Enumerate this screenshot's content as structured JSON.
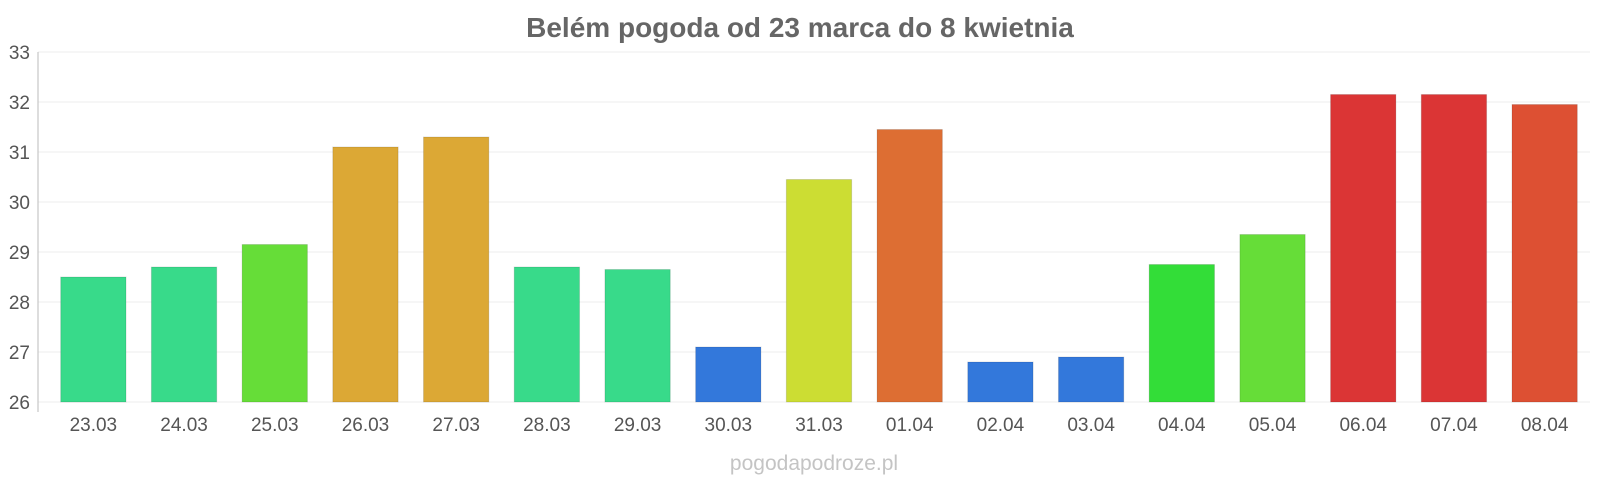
{
  "chart_data": {
    "type": "bar",
    "title": "Belém pogoda od 23 marca do 8 kwietnia",
    "xlabel": "",
    "ylabel": "",
    "ylim": [
      26,
      33
    ],
    "yticks": [
      "26",
      "27",
      "28",
      "29",
      "30",
      "31",
      "32",
      "33"
    ],
    "grid": true,
    "legend": "none",
    "categories": [
      "23.03",
      "24.03",
      "25.03",
      "26.03",
      "27.03",
      "28.03",
      "29.03",
      "30.03",
      "31.03",
      "01.04",
      "02.04",
      "03.04",
      "04.04",
      "05.04",
      "06.04",
      "07.04",
      "08.04"
    ],
    "values": [
      28.5,
      28.7,
      29.15,
      31.1,
      31.3,
      28.7,
      28.65,
      27.1,
      30.45,
      31.45,
      26.8,
      26.9,
      28.75,
      29.35,
      32.15,
      32.15,
      31.95
    ],
    "colors": [
      "#38da8a",
      "#38da8a",
      "#66dd38",
      "#dca835",
      "#dca835",
      "#38da8a",
      "#38da8a",
      "#3378db",
      "#ccdd33",
      "#dd6e33",
      "#3378db",
      "#3378db",
      "#33dd38",
      "#66dd38",
      "#db3535",
      "#db3535",
      "#dd5033"
    ]
  },
  "watermark": "pogodapodroze.pl"
}
